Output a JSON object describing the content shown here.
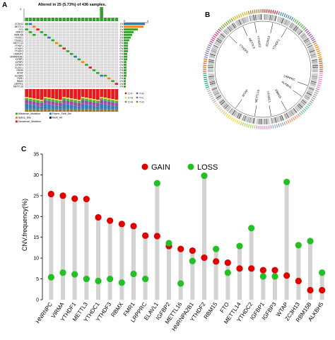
{
  "figure": {
    "panel_a_letter": "A",
    "panel_b_letter": "B",
    "panel_c_letter": "C"
  },
  "oncoprint": {
    "title": "Altered in 25 (5.73%) of 436 samples.",
    "top_axis_max": "4",
    "bottom_axis_left": "0",
    "bottom_axis_right": "4",
    "genes": [
      "ZC3H13",
      "METTL3",
      "FTO",
      "RBM15",
      "RBM15B",
      "YTHDC1",
      "YTHDC2",
      "METTL14",
      "YTHDF1",
      "YTHDF2",
      "YTHDF3",
      "HNRNPC",
      "HNRNPA2B1",
      "IGFBP1",
      "IGFBP2",
      "IGFBP3",
      "ELAVL1",
      "VIRMA",
      "WTAP",
      "ALKBH5",
      "FMR1",
      "RBMX",
      "LRPPRC",
      "METTL16"
    ],
    "percents": [
      "1%",
      "1%",
      "1%",
      "1%",
      "1%",
      "1%",
      "0%",
      "0%",
      "0%",
      "0%",
      "0%",
      "0%",
      "0%",
      "0%",
      "0%",
      "0%",
      "0%",
      "0%",
      "0%",
      "0%",
      "0%",
      "0%",
      "0%",
      "0%"
    ],
    "snv_legend": [
      "C>T",
      "C>G",
      "C>A",
      "T>A",
      "T>C",
      "T>G"
    ],
    "snv_colors": [
      "#e41a1c",
      "#ffd92f",
      "#4daf4a",
      "#984ea3",
      "#377eb8",
      "#a6761d"
    ],
    "mutation_legend": [
      {
        "label": "Missense_Mutation",
        "color": "#33a02c"
      },
      {
        "label": "Frame_Shift_Del",
        "color": "#1f78b4"
      },
      {
        "label": "Splice_Site",
        "color": "#ff7f00"
      },
      {
        "label": "Multi_Hit",
        "color": "#000000"
      },
      {
        "label": "Nonsense_Mutation",
        "color": "#e31a1c"
      }
    ]
  },
  "circos": {
    "genes_inner": [
      "YTHDF1",
      "ZC3H13",
      "YTHDC2",
      "METTL3",
      "YTHDF3",
      "LRPPRC",
      "ALKBH5",
      "RBM15",
      "YTHDC1",
      "METTL16",
      "WTAP"
    ]
  },
  "chart_data": {
    "type": "dot-stick",
    "ylabel": "CNV.frequency(%)",
    "ylim": [
      0,
      35
    ],
    "yticks": [
      0,
      5,
      10,
      15,
      20,
      25,
      30,
      35
    ],
    "legend_position": "top",
    "categories": [
      "HNRNPC",
      "VIRMA",
      "YTHDF1",
      "METTL3",
      "YTHDC1",
      "YTHDF3",
      "RBMX",
      "FMR1",
      "LRPPRC",
      "ELAVL1",
      "IGFBP2",
      "METTL16",
      "HNRNPA2B1",
      "YTHDF2",
      "RBM15",
      "FTO",
      "METTL14",
      "YTHDC2",
      "IGFBP1",
      "IGFBP3",
      "WTAP",
      "ZC3H13",
      "RBM15B",
      "ALKBH5"
    ],
    "series": [
      {
        "name": "GAIN",
        "color": "#e00000",
        "values": [
          25.4,
          25.0,
          24.3,
          24.2,
          19.8,
          19.0,
          18.2,
          17.7,
          15.4,
          15.3,
          12.9,
          12.2,
          11.8,
          10.1,
          9.2,
          8.9,
          7.5,
          7.5,
          7.1,
          7.1,
          5.8,
          4.5,
          2.3,
          2.3
        ]
      },
      {
        "name": "LOSS",
        "color": "#22c022",
        "values": [
          5.4,
          6.5,
          6.1,
          5.0,
          4.5,
          5.0,
          4.1,
          6.2,
          5.0,
          28.0,
          13.6,
          3.9,
          9.3,
          29.8,
          12.2,
          6.5,
          12.9,
          17.2,
          5.6,
          5.6,
          28.3,
          13.1,
          14.1,
          6.5
        ]
      }
    ]
  }
}
